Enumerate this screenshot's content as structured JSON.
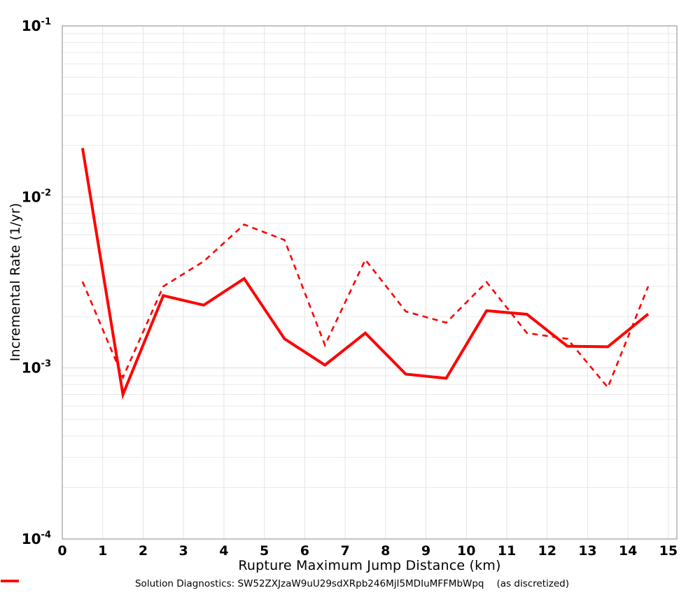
{
  "chart_data": {
    "type": "line",
    "title": "",
    "xlabel": "Rupture Maximum Jump Distance (km)",
    "ylabel": "Incremental Rate (1/yr)",
    "yscale": "log",
    "xlim": [
      0,
      15.21
    ],
    "ylim": [
      0.0001,
      0.1
    ],
    "x_ticks": [
      0,
      1,
      2,
      3,
      4,
      5,
      6,
      7,
      8,
      9,
      10,
      11,
      12,
      13,
      14,
      15
    ],
    "y_tick_exponents": [
      -1,
      -2,
      -3,
      -4
    ],
    "grid": true,
    "legend_position": "bottom",
    "colors": {
      "series_red": "#ff0000",
      "frame": "#a3a3a3",
      "grid_major": "#dadada",
      "grid_minor": "#e9e9e9",
      "grid_vertical": "#e4e4e4",
      "background": "#ffffff"
    },
    "x": [
      0.5,
      1.5,
      2.5,
      3.5,
      4.5,
      5.5,
      6.5,
      7.5,
      8.5,
      9.5,
      10.5,
      11.5,
      12.5,
      13.5,
      14.5
    ],
    "series": [
      {
        "name": "Solution Diagnostics: SW52ZXJzaW9uU29sdXRpb246MjI5MDIuMFFMbWpq",
        "style": "solid",
        "color": "#ff0000",
        "stroke_width": 4,
        "values": [
          0.0193,
          0.0007,
          0.00265,
          0.00233,
          0.00333,
          0.00148,
          0.00104,
          0.0016,
          0.00092,
          0.00087,
          0.00216,
          0.00206,
          0.00134,
          0.00133,
          0.00207
        ]
      },
      {
        "name": "(as discretized)",
        "style": "dashed",
        "color": "#ff0000",
        "stroke_width": 2.6,
        "values": [
          0.0032,
          0.00088,
          0.003,
          0.0042,
          0.0069,
          0.0056,
          0.00136,
          0.0043,
          0.00214,
          0.00184,
          0.00318,
          0.0016,
          0.00148,
          0.00077,
          0.003
        ]
      }
    ]
  }
}
